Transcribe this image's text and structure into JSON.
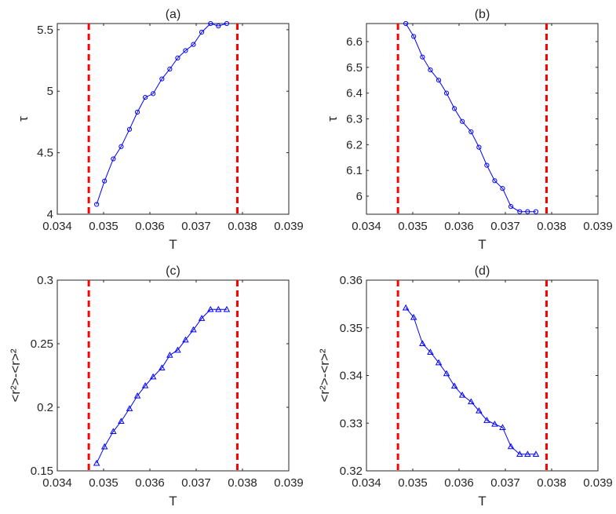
{
  "chart_data": [
    {
      "id": "a",
      "type": "line",
      "title": "(a)",
      "xlabel": "T",
      "ylabel": "τ",
      "xlim": [
        0.034,
        0.039
      ],
      "ylim": [
        4,
        5.55
      ],
      "xticks": [
        0.034,
        0.035,
        0.036,
        0.037,
        0.038,
        0.039
      ],
      "xtick_labels": [
        "0.034",
        "0.035",
        "0.036",
        "0.037",
        "0.038",
        "0.039"
      ],
      "yticks": [
        4,
        4.5,
        5,
        5.5
      ],
      "ytick_labels": [
        "4",
        "4.5",
        "5",
        "5.5"
      ],
      "marker": "circle",
      "series": [
        {
          "name": "tau",
          "color": "#0000ff",
          "x": [
            0.03485,
            0.03502,
            0.03521,
            0.03538,
            0.03556,
            0.03573,
            0.0359,
            0.03607,
            0.03626,
            0.03643,
            0.0366,
            0.03677,
            0.03694,
            0.03712,
            0.03731,
            0.03748,
            0.03766
          ],
          "y": [
            4.08,
            4.27,
            4.45,
            4.55,
            4.69,
            4.83,
            4.95,
            4.98,
            5.1,
            5.18,
            5.27,
            5.33,
            5.38,
            5.48,
            5.55,
            5.53,
            5.55
          ]
        }
      ],
      "vlines": [
        0.03468,
        0.03789
      ],
      "vline_color": "#ff0000"
    },
    {
      "id": "b",
      "type": "line",
      "title": "(b)",
      "xlabel": "T",
      "ylabel": "τ",
      "xlim": [
        0.034,
        0.039
      ],
      "ylim": [
        5.93,
        6.67
      ],
      "xticks": [
        0.034,
        0.035,
        0.036,
        0.037,
        0.038,
        0.039
      ],
      "xtick_labels": [
        "0.034",
        "0.035",
        "0.036",
        "0.037",
        "0.038",
        "0.039"
      ],
      "yticks": [
        6,
        6.1,
        6.2,
        6.3,
        6.4,
        6.5,
        6.6
      ],
      "ytick_labels": [
        "6",
        "6.1",
        "6.2",
        "6.3",
        "6.4",
        "6.5",
        "6.6"
      ],
      "marker": "circle",
      "series": [
        {
          "name": "tau",
          "color": "#0000ff",
          "x": [
            0.03485,
            0.03502,
            0.03521,
            0.03538,
            0.03556,
            0.03573,
            0.0359,
            0.03607,
            0.03626,
            0.03643,
            0.0366,
            0.03677,
            0.03694,
            0.03712,
            0.03731,
            0.03748,
            0.03766
          ],
          "y": [
            6.67,
            6.62,
            6.54,
            6.49,
            6.45,
            6.4,
            6.34,
            6.29,
            6.25,
            6.19,
            6.12,
            6.06,
            6.03,
            5.96,
            5.94,
            5.94,
            5.94
          ]
        }
      ],
      "vlines": [
        0.03468,
        0.03789
      ],
      "vline_color": "#ff0000"
    },
    {
      "id": "c",
      "type": "line",
      "title": "(c)",
      "xlabel": "T",
      "ylabel": "<r²>-<r>²",
      "xlim": [
        0.034,
        0.039
      ],
      "ylim": [
        0.15,
        0.3
      ],
      "xticks": [
        0.034,
        0.035,
        0.036,
        0.037,
        0.038,
        0.039
      ],
      "xtick_labels": [
        "0.034",
        "0.035",
        "0.036",
        "0.037",
        "0.038",
        "0.039"
      ],
      "yticks": [
        0.15,
        0.2,
        0.25,
        0.3
      ],
      "ytick_labels": [
        "0.15",
        "0.2",
        "0.25",
        "0.3"
      ],
      "marker": "triangle",
      "series": [
        {
          "name": "variance",
          "color": "#0000ff",
          "x": [
            0.03485,
            0.03502,
            0.03521,
            0.03538,
            0.03556,
            0.03573,
            0.0359,
            0.03607,
            0.03626,
            0.03643,
            0.0366,
            0.03677,
            0.03694,
            0.03712,
            0.03731,
            0.03748,
            0.03766
          ],
          "y": [
            0.156,
            0.169,
            0.181,
            0.189,
            0.199,
            0.209,
            0.217,
            0.224,
            0.231,
            0.241,
            0.245,
            0.253,
            0.261,
            0.27,
            0.277,
            0.277,
            0.277
          ]
        }
      ],
      "vlines": [
        0.03468,
        0.03789
      ],
      "vline_color": "#ff0000"
    },
    {
      "id": "d",
      "type": "line",
      "title": "(d)",
      "xlabel": "T",
      "ylabel": "<r²>-<r>²",
      "xlim": [
        0.034,
        0.039
      ],
      "ylim": [
        0.32,
        0.36
      ],
      "xticks": [
        0.034,
        0.035,
        0.036,
        0.037,
        0.038,
        0.039
      ],
      "xtick_labels": [
        "0.034",
        "0.035",
        "0.036",
        "0.037",
        "0.038",
        "0.039"
      ],
      "yticks": [
        0.32,
        0.33,
        0.34,
        0.35,
        0.36
      ],
      "ytick_labels": [
        "0.32",
        "0.33",
        "0.34",
        "0.35",
        "0.36"
      ],
      "marker": "triangle",
      "series": [
        {
          "name": "variance",
          "color": "#0000ff",
          "x": [
            0.03485,
            0.03502,
            0.03521,
            0.03538,
            0.03556,
            0.03573,
            0.0359,
            0.03607,
            0.03626,
            0.03643,
            0.0366,
            0.03677,
            0.03694,
            0.03712,
            0.03731,
            0.03748,
            0.03766
          ],
          "y": [
            0.3542,
            0.3522,
            0.3467,
            0.3449,
            0.3427,
            0.3404,
            0.3378,
            0.3359,
            0.3345,
            0.3326,
            0.3306,
            0.3298,
            0.3291,
            0.3251,
            0.3235,
            0.3235,
            0.3235
          ]
        }
      ],
      "vlines": [
        0.03468,
        0.03789
      ],
      "vline_color": "#ff0000"
    }
  ]
}
